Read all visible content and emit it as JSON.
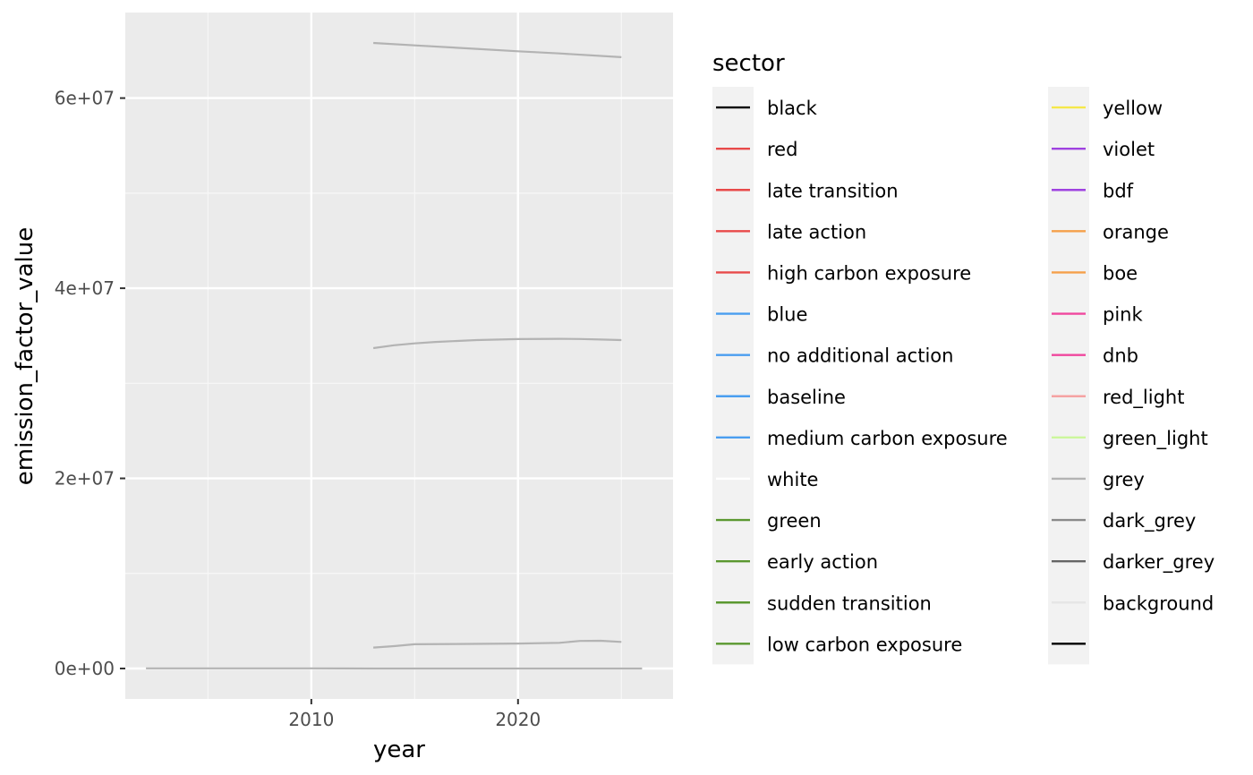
{
  "chart_data": {
    "type": "line",
    "title": "",
    "xlabel": "year",
    "ylabel": "emission_factor_value",
    "xlim": [
      2001,
      2027.5
    ],
    "ylim": [
      -3200000,
      69000000
    ],
    "x_ticks": [
      2010,
      2020
    ],
    "x_tick_labels": [
      "2010",
      "2020"
    ],
    "x_minor_ticks": [
      2005,
      2015,
      2025
    ],
    "y_ticks": [
      0,
      20000000,
      40000000,
      60000000
    ],
    "y_tick_labels": [
      "0e+00",
      "2e+07",
      "4e+07",
      "6e+07"
    ],
    "y_minor_ticks": [
      10000000,
      30000000,
      50000000
    ],
    "grid": true,
    "legend_position": "right",
    "series": [
      {
        "color": "#b3b3b3",
        "points": [
          [
            2013,
            65800000
          ],
          [
            2015,
            65550000
          ],
          [
            2018,
            65180000
          ],
          [
            2020,
            64920000
          ],
          [
            2022,
            64700000
          ],
          [
            2025,
            64300000
          ]
        ]
      },
      {
        "color": "#b3b3b3",
        "points": [
          [
            2013,
            33700000
          ],
          [
            2014,
            34000000
          ],
          [
            2015,
            34200000
          ],
          [
            2016,
            34350000
          ],
          [
            2018,
            34550000
          ],
          [
            2020,
            34650000
          ],
          [
            2022,
            34680000
          ],
          [
            2023,
            34660000
          ],
          [
            2024,
            34600000
          ],
          [
            2025,
            34550000
          ]
        ]
      },
      {
        "color": "#b3b3b3",
        "points": [
          [
            2013,
            2200000
          ],
          [
            2014,
            2350000
          ],
          [
            2015,
            2550000
          ],
          [
            2017,
            2580000
          ],
          [
            2020,
            2630000
          ],
          [
            2022,
            2700000
          ],
          [
            2023,
            2900000
          ],
          [
            2024,
            2920000
          ],
          [
            2025,
            2800000
          ]
        ]
      },
      {
        "color": "#b3b3b3",
        "points": [
          [
            2002,
            20000
          ],
          [
            2010,
            20000
          ],
          [
            2013,
            0
          ],
          [
            2020,
            0
          ],
          [
            2025,
            0
          ],
          [
            2026,
            0
          ]
        ]
      }
    ]
  },
  "legend": {
    "title": "sector",
    "columns": [
      [
        {
          "label": "black",
          "color": "#000000"
        },
        {
          "label": "red",
          "color": "#e84a4a"
        },
        {
          "label": "late transition",
          "color": "#e84a4a"
        },
        {
          "label": "late action",
          "color": "#e84a4a"
        },
        {
          "label": "high carbon exposure",
          "color": "#e84a4a"
        },
        {
          "label": "blue",
          "color": "#4a9ef0"
        },
        {
          "label": "no additional action",
          "color": "#4a9ef0"
        },
        {
          "label": "baseline",
          "color": "#4a9ef0"
        },
        {
          "label": "medium carbon exposure",
          "color": "#4a9ef0"
        },
        {
          "label": "white",
          "color": "#ffffff"
        },
        {
          "label": "green",
          "color": "#5b9830"
        },
        {
          "label": "early action",
          "color": "#5b9830"
        },
        {
          "label": "sudden transition",
          "color": "#5b9830"
        },
        {
          "label": "low carbon exposure",
          "color": "#5b9830"
        }
      ],
      [
        {
          "label": "yellow",
          "color": "#f5e84a"
        },
        {
          "label": "violet",
          "color": "#9f42e0"
        },
        {
          "label": "bdf",
          "color": "#9f42e0"
        },
        {
          "label": "orange",
          "color": "#f5a04a"
        },
        {
          "label": "boe",
          "color": "#f5a04a"
        },
        {
          "label": "pink",
          "color": "#f0479e"
        },
        {
          "label": "dnb",
          "color": "#f0479e"
        },
        {
          "label": "red_light",
          "color": "#f5a3a3"
        },
        {
          "label": "green_light",
          "color": "#ccf79c"
        },
        {
          "label": "grey",
          "color": "#b3b3b3"
        },
        {
          "label": "dark_grey",
          "color": "#8a8a8a"
        },
        {
          "label": "darker_grey",
          "color": "#666666"
        },
        {
          "label": "background",
          "color": "#e6e6e6"
        },
        {
          "label": "",
          "color": "#000000"
        }
      ]
    ]
  },
  "colors": {
    "panel_background": "#ebebeb",
    "grid_major": "#ffffff",
    "grid_minor": "#f7f7f7",
    "legend_key_background": "#f2f2f2"
  }
}
